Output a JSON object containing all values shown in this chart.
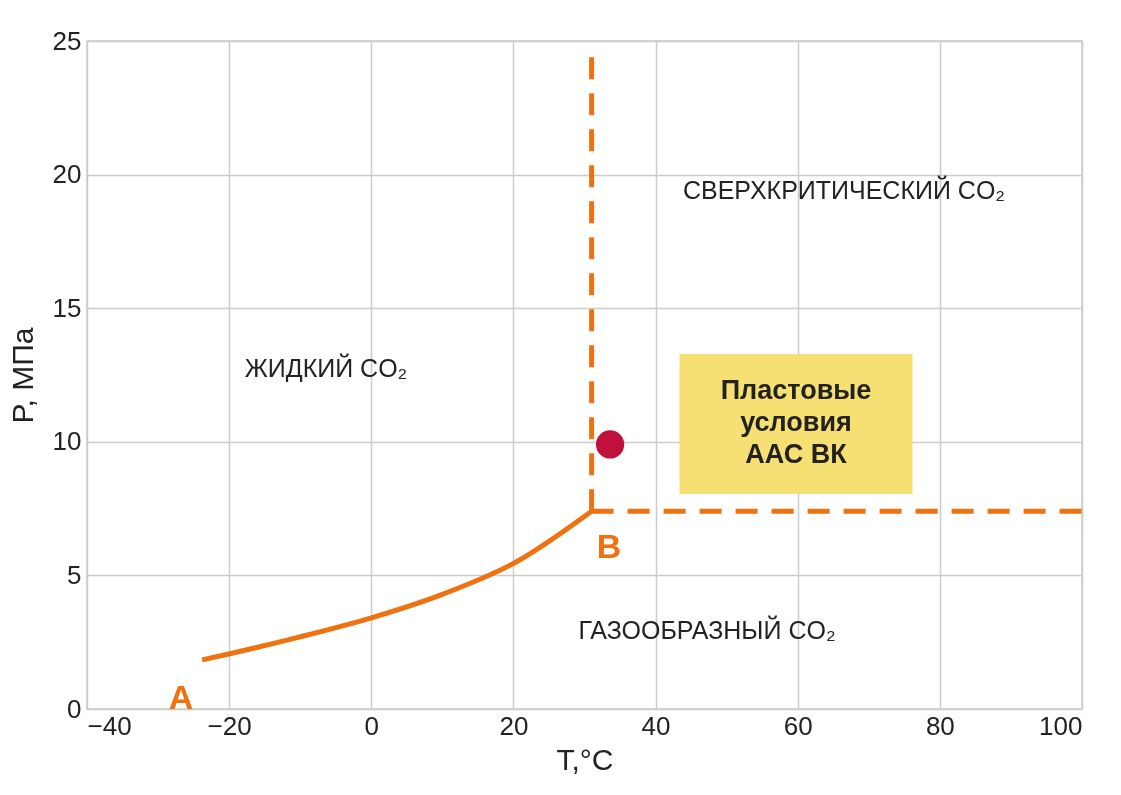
{
  "chart_data": {
    "type": "line",
    "xlabel": "T,°C",
    "ylabel": "P, МПа",
    "xlim": [
      -40,
      100
    ],
    "xticks": [
      -40,
      -20,
      0,
      20,
      40,
      60,
      80,
      100
    ],
    "ylim": [
      0,
      25
    ],
    "yticks": [
      0,
      5,
      10,
      15,
      20,
      25
    ],
    "grid": true,
    "series": [
      {
        "color": "#ef7110",
        "line_style": "solid",
        "marker": "none",
        "x": [
          -23.8,
          -19.9,
          -10.3,
          0,
          9.9,
          20.3,
          31
        ],
        "values": [
          1.84,
          2.07,
          2.68,
          3.41,
          4.28,
          5.49,
          7.4
        ]
      },
      {
        "color": "#ef7110",
        "line_style": "dashed",
        "marker": "none",
        "x": [
          31,
          31
        ],
        "values": [
          7.4,
          24.5
        ]
      },
      {
        "color": "#ef7110",
        "line_style": "dashed",
        "marker": "none",
        "x": [
          31,
          100
        ],
        "values": [
          7.4,
          7.4
        ]
      },
      {
        "type": "scatter",
        "color": "#c0103c",
        "marker": "circle",
        "x": [
          33.6
        ],
        "values": [
          9.9
        ]
      }
    ],
    "annotations": [
      "СВЕРХКРИТИЧЕСКИЙ CO₂",
      "ЖИДКИЙ CO₂",
      "ГАЗООБРАЗНЫЙ CO₂",
      "A",
      "B",
      "Пластовые\nусловия\nААС ВК"
    ]
  }
}
